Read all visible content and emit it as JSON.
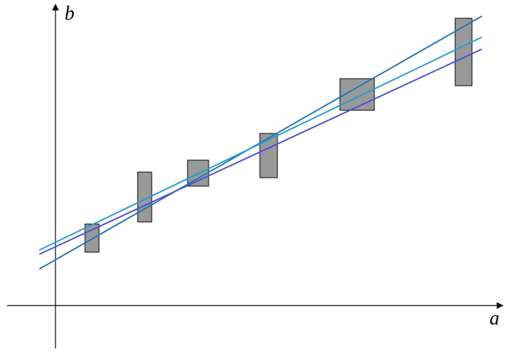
{
  "axes": {
    "x_label": "a",
    "y_label": "b"
  },
  "colors": {
    "axis": "#000000",
    "box_fill": "#999999",
    "box_stroke": "#000000",
    "line_1": "#1f77b4",
    "line_2": "#1f9fd0",
    "line_3": "#4b4fd6"
  }
}
